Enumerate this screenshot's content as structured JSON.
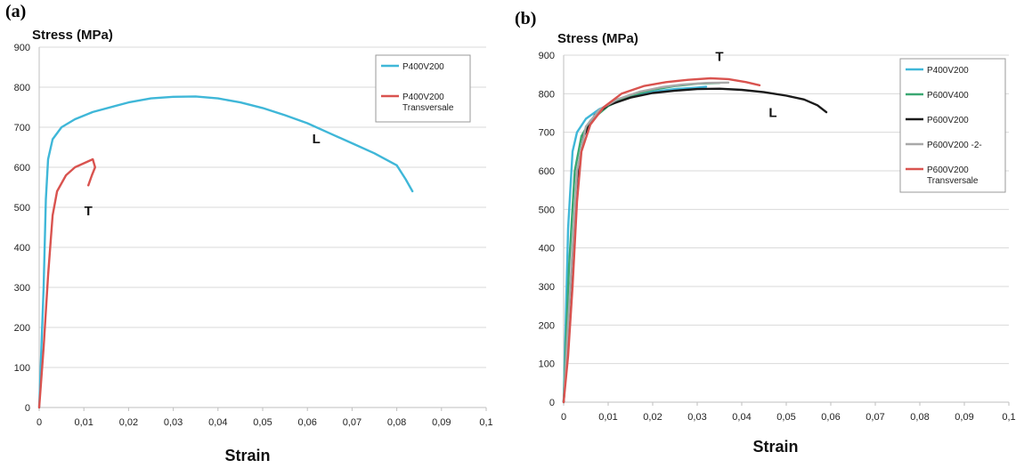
{
  "chart_data": [
    {
      "panel": "(a)",
      "type": "line",
      "ylabel": "Stress (MPa)",
      "xlabel": "Strain",
      "xlim": [
        0,
        0.1
      ],
      "ylim": [
        0,
        900
      ],
      "xticks": [
        "0",
        "0,01",
        "0,02",
        "0,03",
        "0,04",
        "0,05",
        "0,06",
        "0,07",
        "0,08",
        "0,09",
        "0,1"
      ],
      "yticks": [
        "0",
        "100",
        "200",
        "300",
        "400",
        "500",
        "600",
        "700",
        "800",
        "900"
      ],
      "grid": "horizontal",
      "legend_position": "top-right",
      "series": [
        {
          "name": "P400V200",
          "color": "#3fb7d8",
          "points": [
            [
              0,
              0
            ],
            [
              0.001,
              300
            ],
            [
              0.0015,
              520
            ],
            [
              0.002,
              620
            ],
            [
              0.003,
              670
            ],
            [
              0.005,
              700
            ],
            [
              0.008,
              720
            ],
            [
              0.012,
              738
            ],
            [
              0.02,
              762
            ],
            [
              0.025,
              772
            ],
            [
              0.03,
              776
            ],
            [
              0.035,
              777
            ],
            [
              0.04,
              772
            ],
            [
              0.045,
              762
            ],
            [
              0.05,
              748
            ],
            [
              0.055,
              730
            ],
            [
              0.06,
              710
            ],
            [
              0.065,
              685
            ],
            [
              0.07,
              660
            ],
            [
              0.075,
              635
            ],
            [
              0.08,
              605
            ],
            [
              0.082,
              570
            ],
            [
              0.0835,
              540
            ]
          ]
        },
        {
          "name": "P400V200 Transversale",
          "color": "#d9534f",
          "points": [
            [
              0,
              0
            ],
            [
              0.001,
              150
            ],
            [
              0.002,
              330
            ],
            [
              0.003,
              480
            ],
            [
              0.004,
              540
            ],
            [
              0.006,
              580
            ],
            [
              0.008,
              600
            ],
            [
              0.01,
              610
            ],
            [
              0.012,
              620
            ],
            [
              0.0125,
              600
            ],
            [
              0.0118,
              580
            ],
            [
              0.011,
              555
            ]
          ]
        }
      ],
      "annotations": [
        {
          "text": "L",
          "x": 0.062,
          "y": 660
        },
        {
          "text": "T",
          "x": 0.011,
          "y": 480
        }
      ]
    },
    {
      "panel": "(b)",
      "type": "line",
      "ylabel": "Stress (MPa)",
      "xlabel": "Strain",
      "xlim": [
        0,
        0.1
      ],
      "ylim": [
        0,
        900
      ],
      "xticks": [
        "0",
        "0,01",
        "0,02",
        "0,03",
        "0,04",
        "0,05",
        "0,06",
        "0,07",
        "0,08",
        "0,09",
        "0,1"
      ],
      "yticks": [
        "0",
        "100",
        "200",
        "300",
        "400",
        "500",
        "600",
        "700",
        "800",
        "900"
      ],
      "grid": "horizontal",
      "legend_position": "top-right",
      "series": [
        {
          "name": "P400V200",
          "color": "#3fb7d8",
          "points": [
            [
              0,
              0
            ],
            [
              0.001,
              450
            ],
            [
              0.002,
              650
            ],
            [
              0.003,
              700
            ],
            [
              0.005,
              735
            ],
            [
              0.008,
              760
            ],
            [
              0.012,
              780
            ],
            [
              0.016,
              795
            ],
            [
              0.02,
              805
            ],
            [
              0.025,
              812
            ],
            [
              0.03,
              816
            ],
            [
              0.032,
              818
            ]
          ]
        },
        {
          "name": "P600V400",
          "color": "#3aa772",
          "points": [
            [
              0,
              0
            ],
            [
              0.0012,
              350
            ],
            [
              0.0025,
              600
            ],
            [
              0.004,
              690
            ],
            [
              0.006,
              730
            ],
            [
              0.01,
              768
            ],
            [
              0.015,
              795
            ],
            [
              0.02,
              810
            ],
            [
              0.025,
              820
            ],
            [
              0.03,
              826
            ],
            [
              0.035,
              828
            ]
          ]
        },
        {
          "name": "P600V200",
          "color": "#1a1a1a",
          "points": [
            [
              0,
              0
            ],
            [
              0.0015,
              250
            ],
            [
              0.003,
              580
            ],
            [
              0.0045,
              690
            ],
            [
              0.007,
              745
            ],
            [
              0.01,
              770
            ],
            [
              0.015,
              790
            ],
            [
              0.02,
              802
            ],
            [
              0.025,
              808
            ],
            [
              0.03,
              812
            ],
            [
              0.035,
              813
            ],
            [
              0.04,
              810
            ],
            [
              0.045,
              804
            ],
            [
              0.05,
              795
            ],
            [
              0.054,
              785
            ],
            [
              0.057,
              770
            ],
            [
              0.059,
              752
            ]
          ]
        },
        {
          "name": "P600V200 -2-",
          "color": "#a8a8a8",
          "points": [
            [
              0,
              0
            ],
            [
              0.0015,
              300
            ],
            [
              0.003,
              600
            ],
            [
              0.005,
              715
            ],
            [
              0.008,
              758
            ],
            [
              0.012,
              785
            ],
            [
              0.017,
              805
            ],
            [
              0.022,
              817
            ],
            [
              0.027,
              824
            ],
            [
              0.032,
              828
            ],
            [
              0.037,
              829
            ]
          ]
        },
        {
          "name": "P600V200 Transversale",
          "color": "#d9534f",
          "points": [
            [
              0,
              0
            ],
            [
              0.001,
              120
            ],
            [
              0.002,
              300
            ],
            [
              0.003,
              520
            ],
            [
              0.004,
              650
            ],
            [
              0.006,
              720
            ],
            [
              0.009,
              765
            ],
            [
              0.013,
              800
            ],
            [
              0.018,
              820
            ],
            [
              0.023,
              830
            ],
            [
              0.028,
              836
            ],
            [
              0.033,
              840
            ],
            [
              0.037,
              838
            ],
            [
              0.041,
              830
            ],
            [
              0.044,
              822
            ]
          ]
        }
      ],
      "annotations": [
        {
          "text": "T",
          "x": 0.035,
          "y": 885
        },
        {
          "text": "L",
          "x": 0.047,
          "y": 740
        }
      ]
    }
  ]
}
